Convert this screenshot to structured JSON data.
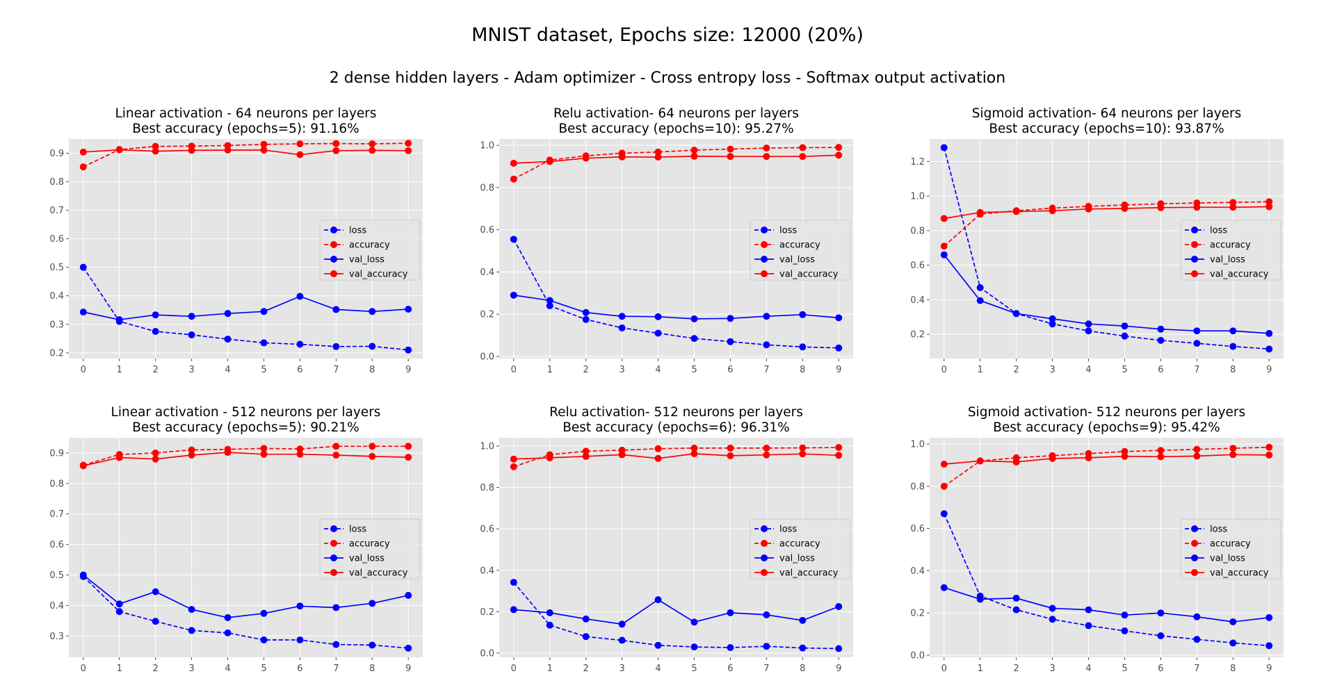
{
  "figure": {
    "suptitle": "MNIST dataset, Epochs size: 12000 (20%)",
    "subtitle": "2 dense hidden layers - Adam optimizer - Cross entropy loss - Softmax output activation"
  },
  "colors": {
    "loss": "#0000ff",
    "accuracy": "#ff0000",
    "plot_background": "#e5e5e5",
    "grid": "#ffffff"
  },
  "chart_data": [
    {
      "type": "line",
      "title_line1": "Linear activation - 64 neurons per layers",
      "title_line2": "Best accuracy (epochs=5): 91.16%",
      "xlabel": "",
      "ylabel": "",
      "x": [
        0,
        1,
        2,
        3,
        4,
        5,
        6,
        7,
        8,
        9
      ],
      "ylim": [
        0.18,
        0.95
      ],
      "yticks": [
        0.2,
        0.3,
        0.4,
        0.5,
        0.6,
        0.7,
        0.8,
        0.9
      ],
      "grid": true,
      "legend_position": "center-right",
      "series": [
        {
          "name": "loss",
          "color": "#0000ff",
          "style": "dashed",
          "values": [
            0.5,
            0.31,
            0.275,
            0.263,
            0.248,
            0.235,
            0.23,
            0.222,
            0.223,
            0.21
          ]
        },
        {
          "name": "accuracy",
          "color": "#ff0000",
          "style": "dashed",
          "values": [
            0.852,
            0.913,
            0.924,
            0.925,
            0.927,
            0.931,
            0.933,
            0.934,
            0.933,
            0.935
          ]
        },
        {
          "name": "val_loss",
          "color": "#0000ff",
          "style": "solid",
          "values": [
            0.343,
            0.316,
            0.333,
            0.328,
            0.338,
            0.345,
            0.398,
            0.352,
            0.345,
            0.353
          ]
        },
        {
          "name": "val_accuracy",
          "color": "#ff0000",
          "style": "solid",
          "values": [
            0.904,
            0.912,
            0.907,
            0.91,
            0.911,
            0.911,
            0.895,
            0.909,
            0.91,
            0.909
          ]
        }
      ]
    },
    {
      "type": "line",
      "title_line1": "Relu activation- 64 neurons per layers",
      "title_line2": "Best accuracy (epochs=10): 95.27%",
      "xlabel": "",
      "ylabel": "",
      "x": [
        0,
        1,
        2,
        3,
        4,
        5,
        6,
        7,
        8,
        9
      ],
      "ylim": [
        -0.01,
        1.03
      ],
      "yticks": [
        0.0,
        0.2,
        0.4,
        0.6,
        0.8,
        1.0
      ],
      "grid": true,
      "legend_position": "center-right",
      "series": [
        {
          "name": "loss",
          "color": "#0000ff",
          "style": "dashed",
          "values": [
            0.555,
            0.24,
            0.175,
            0.135,
            0.11,
            0.085,
            0.07,
            0.055,
            0.045,
            0.04
          ]
        },
        {
          "name": "accuracy",
          "color": "#ff0000",
          "style": "dashed",
          "values": [
            0.84,
            0.93,
            0.95,
            0.963,
            0.968,
            0.977,
            0.982,
            0.987,
            0.989,
            0.99
          ]
        },
        {
          "name": "val_loss",
          "color": "#0000ff",
          "style": "solid",
          "values": [
            0.29,
            0.265,
            0.208,
            0.19,
            0.188,
            0.178,
            0.18,
            0.19,
            0.198,
            0.183
          ]
        },
        {
          "name": "val_accuracy",
          "color": "#ff0000",
          "style": "solid",
          "values": [
            0.915,
            0.923,
            0.939,
            0.945,
            0.944,
            0.948,
            0.947,
            0.947,
            0.947,
            0.953
          ]
        }
      ]
    },
    {
      "type": "line",
      "title_line1": "Sigmoid activation- 64 neurons per layers",
      "title_line2": "Best accuracy (epochs=10): 93.87%",
      "xlabel": "",
      "ylabel": "",
      "x": [
        0,
        1,
        2,
        3,
        4,
        5,
        6,
        7,
        8,
        9
      ],
      "ylim": [
        0.06,
        1.33
      ],
      "yticks": [
        0.2,
        0.4,
        0.6,
        0.8,
        1.0,
        1.2
      ],
      "grid": true,
      "legend_position": "center-right",
      "series": [
        {
          "name": "loss",
          "color": "#0000ff",
          "style": "dashed",
          "values": [
            1.28,
            0.47,
            0.32,
            0.26,
            0.22,
            0.19,
            0.165,
            0.148,
            0.13,
            0.115
          ]
        },
        {
          "name": "accuracy",
          "color": "#ff0000",
          "style": "dashed",
          "values": [
            0.71,
            0.895,
            0.915,
            0.93,
            0.94,
            0.948,
            0.955,
            0.96,
            0.963,
            0.967
          ]
        },
        {
          "name": "val_loss",
          "color": "#0000ff",
          "style": "solid",
          "values": [
            0.66,
            0.395,
            0.32,
            0.29,
            0.26,
            0.248,
            0.23,
            0.22,
            0.22,
            0.205
          ]
        },
        {
          "name": "val_accuracy",
          "color": "#ff0000",
          "style": "solid",
          "values": [
            0.87,
            0.905,
            0.91,
            0.915,
            0.925,
            0.928,
            0.933,
            0.935,
            0.935,
            0.938
          ]
        }
      ]
    },
    {
      "type": "line",
      "title_line1": "Linear activation - 512 neurons per layers",
      "title_line2": "Best accuracy (epochs=5): 90.21%",
      "xlabel": "",
      "ylabel": "",
      "x": [
        0,
        1,
        2,
        3,
        4,
        5,
        6,
        7,
        8,
        9
      ],
      "ylim": [
        0.23,
        0.95
      ],
      "yticks": [
        0.3,
        0.4,
        0.5,
        0.6,
        0.7,
        0.8,
        0.9
      ],
      "grid": true,
      "legend_position": "center-right",
      "series": [
        {
          "name": "loss",
          "color": "#0000ff",
          "style": "dashed",
          "values": [
            0.495,
            0.38,
            0.348,
            0.318,
            0.31,
            0.287,
            0.287,
            0.272,
            0.27,
            0.26
          ]
        },
        {
          "name": "accuracy",
          "color": "#ff0000",
          "style": "dashed",
          "values": [
            0.86,
            0.895,
            0.9,
            0.91,
            0.912,
            0.915,
            0.913,
            0.922,
            0.922,
            0.922
          ]
        },
        {
          "name": "val_loss",
          "color": "#0000ff",
          "style": "solid",
          "values": [
            0.5,
            0.405,
            0.445,
            0.387,
            0.36,
            0.374,
            0.398,
            0.393,
            0.407,
            0.433
          ]
        },
        {
          "name": "val_accuracy",
          "color": "#ff0000",
          "style": "solid",
          "values": [
            0.858,
            0.885,
            0.88,
            0.893,
            0.902,
            0.896,
            0.896,
            0.893,
            0.889,
            0.886
          ]
        }
      ]
    },
    {
      "type": "line",
      "title_line1": "Relu activation- 512 neurons per layers",
      "title_line2": "Best accuracy (epochs=6): 96.31%",
      "xlabel": "",
      "ylabel": "",
      "x": [
        0,
        1,
        2,
        3,
        4,
        5,
        6,
        7,
        8,
        9
      ],
      "ylim": [
        -0.02,
        1.04
      ],
      "yticks": [
        0.0,
        0.2,
        0.4,
        0.6,
        0.8,
        1.0
      ],
      "grid": true,
      "legend_position": "center-right",
      "series": [
        {
          "name": "loss",
          "color": "#0000ff",
          "style": "dashed",
          "values": [
            0.342,
            0.135,
            0.08,
            0.062,
            0.038,
            0.03,
            0.027,
            0.033,
            0.025,
            0.022
          ]
        },
        {
          "name": "accuracy",
          "color": "#ff0000",
          "style": "dashed",
          "values": [
            0.9,
            0.958,
            0.975,
            0.98,
            0.987,
            0.99,
            0.99,
            0.99,
            0.991,
            0.993
          ]
        },
        {
          "name": "val_loss",
          "color": "#0000ff",
          "style": "solid",
          "values": [
            0.21,
            0.195,
            0.165,
            0.14,
            0.258,
            0.15,
            0.195,
            0.185,
            0.158,
            0.225
          ]
        },
        {
          "name": "val_accuracy",
          "color": "#ff0000",
          "style": "solid",
          "values": [
            0.937,
            0.943,
            0.95,
            0.958,
            0.94,
            0.963,
            0.953,
            0.957,
            0.962,
            0.955
          ]
        }
      ]
    },
    {
      "type": "line",
      "title_line1": "Sigmoid activation- 512 neurons per layers",
      "title_line2": "Best accuracy (epochs=9): 95.42%",
      "xlabel": "",
      "ylabel": "",
      "x": [
        0,
        1,
        2,
        3,
        4,
        5,
        6,
        7,
        8,
        9
      ],
      "ylim": [
        -0.01,
        1.03
      ],
      "yticks": [
        0.0,
        0.2,
        0.4,
        0.6,
        0.8,
        1.0
      ],
      "grid": true,
      "legend_position": "center-right",
      "series": [
        {
          "name": "loss",
          "color": "#0000ff",
          "style": "dashed",
          "values": [
            0.67,
            0.28,
            0.215,
            0.17,
            0.14,
            0.115,
            0.092,
            0.075,
            0.058,
            0.045
          ]
        },
        {
          "name": "accuracy",
          "color": "#ff0000",
          "style": "dashed",
          "values": [
            0.8,
            0.92,
            0.935,
            0.945,
            0.955,
            0.965,
            0.97,
            0.975,
            0.98,
            0.985
          ]
        },
        {
          "name": "val_loss",
          "color": "#0000ff",
          "style": "solid",
          "values": [
            0.32,
            0.265,
            0.27,
            0.222,
            0.215,
            0.19,
            0.2,
            0.182,
            0.158,
            0.178
          ]
        },
        {
          "name": "val_accuracy",
          "color": "#ff0000",
          "style": "solid",
          "values": [
            0.905,
            0.92,
            0.915,
            0.932,
            0.935,
            0.942,
            0.94,
            0.943,
            0.95,
            0.948
          ]
        }
      ]
    }
  ]
}
